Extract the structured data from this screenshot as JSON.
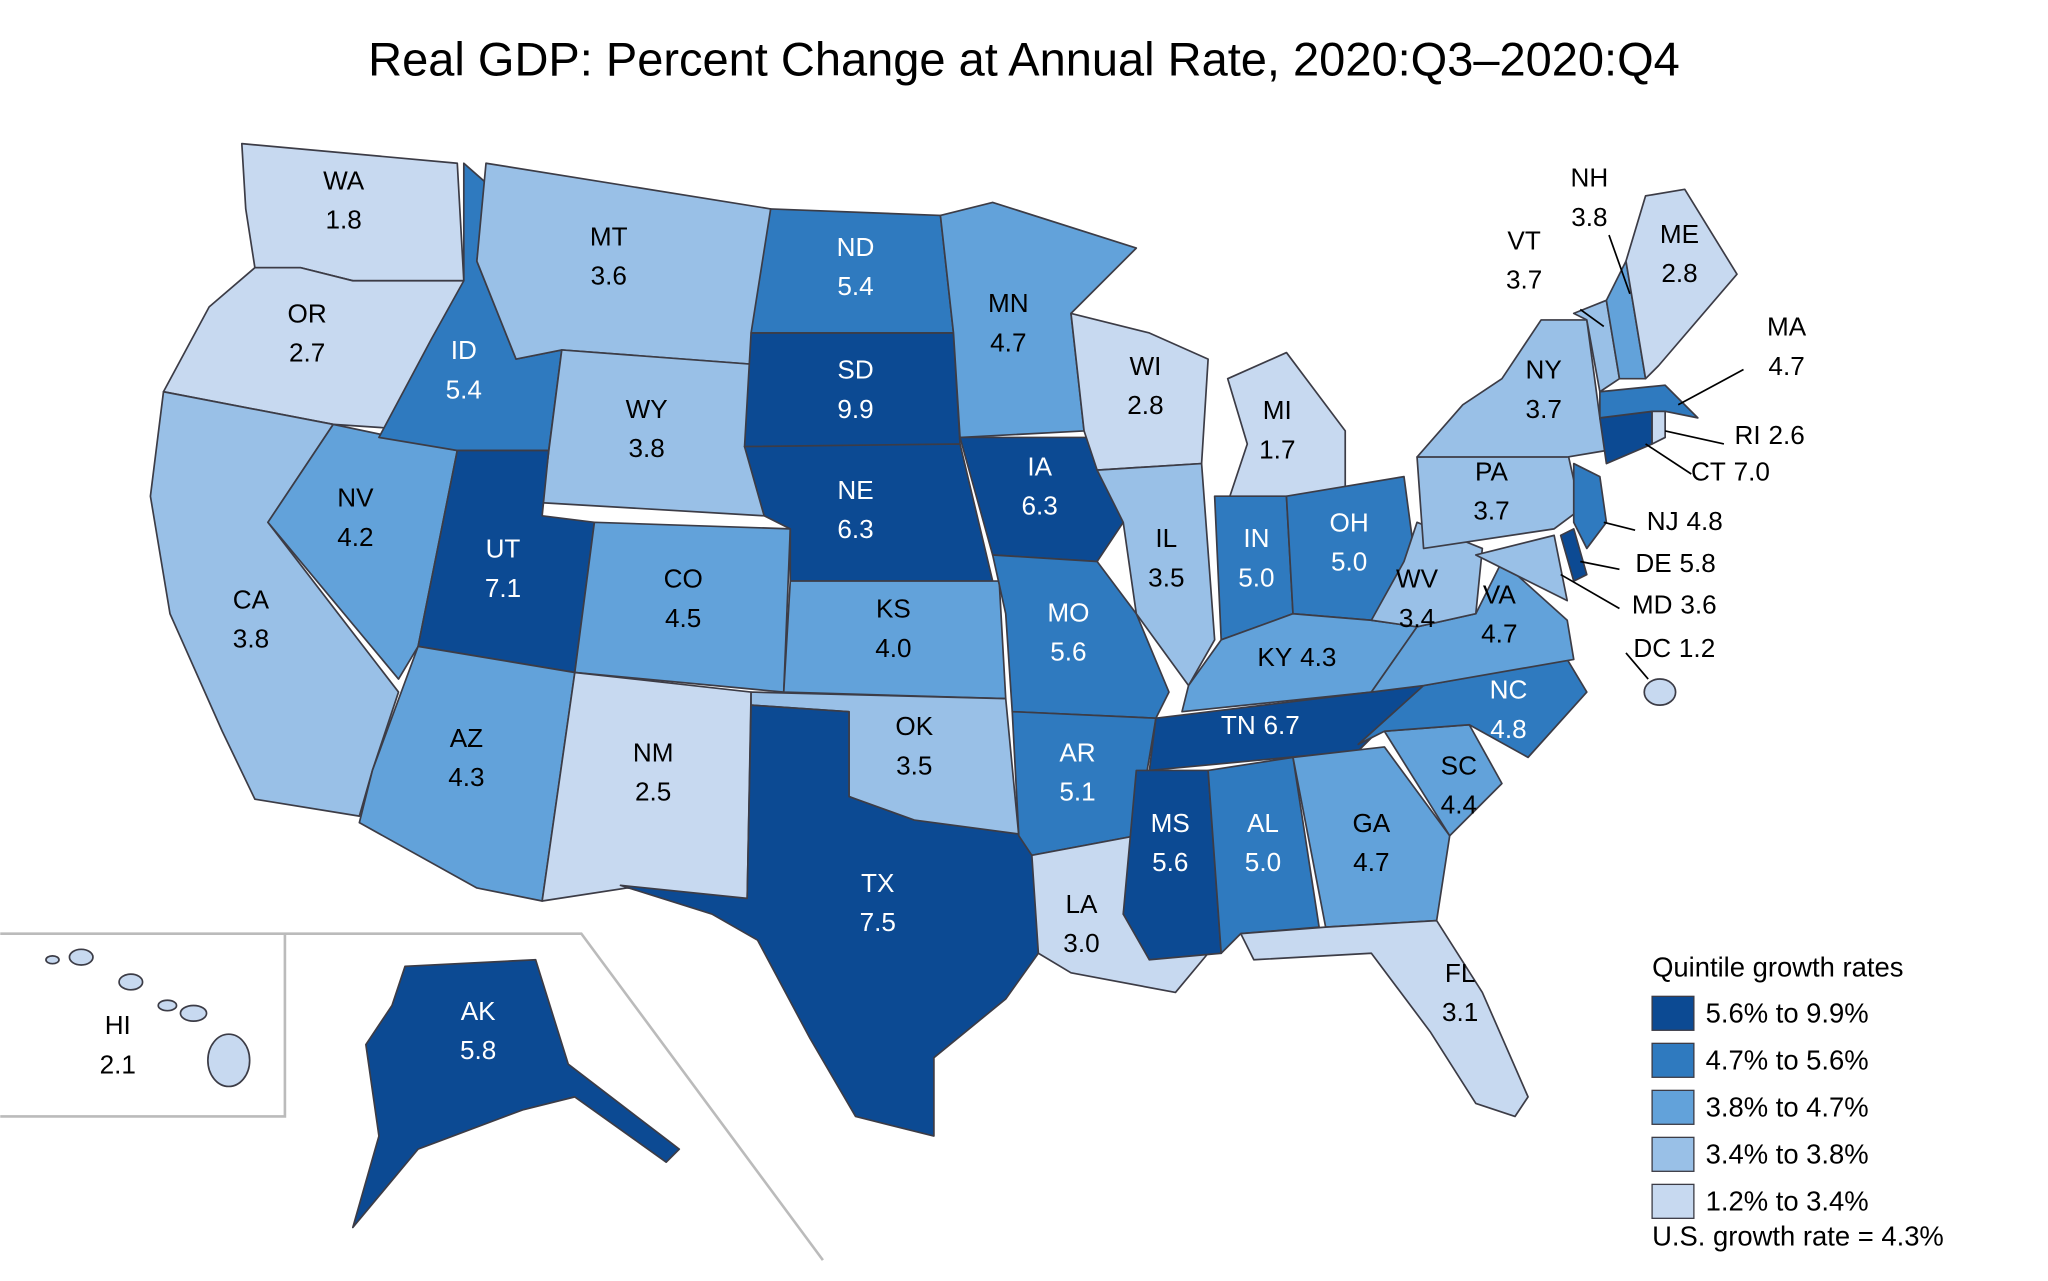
{
  "title": "Real GDP: Percent Change at Annual Rate, 2020:Q3–2020:Q4",
  "map": {
    "states": [
      {
        "abbr": "WA",
        "value": 1.8,
        "bin": 4
      },
      {
        "abbr": "OR",
        "value": 2.7,
        "bin": 4
      },
      {
        "abbr": "CA",
        "value": 3.8,
        "bin": 3
      },
      {
        "abbr": "NV",
        "value": 4.2,
        "bin": 2
      },
      {
        "abbr": "ID",
        "value": 5.4,
        "bin": 1
      },
      {
        "abbr": "MT",
        "value": 3.6,
        "bin": 3
      },
      {
        "abbr": "WY",
        "value": 3.8,
        "bin": 3
      },
      {
        "abbr": "UT",
        "value": 7.1,
        "bin": 0
      },
      {
        "abbr": "AZ",
        "value": 4.3,
        "bin": 2
      },
      {
        "abbr": "CO",
        "value": 4.5,
        "bin": 2
      },
      {
        "abbr": "NM",
        "value": 2.5,
        "bin": 4
      },
      {
        "abbr": "ND",
        "value": 5.4,
        "bin": 1
      },
      {
        "abbr": "SD",
        "value": 9.9,
        "bin": 0
      },
      {
        "abbr": "NE",
        "value": 6.3,
        "bin": 0
      },
      {
        "abbr": "KS",
        "value": 4,
        "label": "4.0",
        "bin": 2
      },
      {
        "abbr": "OK",
        "value": 3.5,
        "bin": 3
      },
      {
        "abbr": "TX",
        "value": 7.5,
        "bin": 0
      },
      {
        "abbr": "MN",
        "value": 4.7,
        "bin": 2
      },
      {
        "abbr": "IA",
        "value": 6.3,
        "bin": 0
      },
      {
        "abbr": "MO",
        "value": 5.6,
        "bin": 1
      },
      {
        "abbr": "AR",
        "value": 5.1,
        "bin": 1
      },
      {
        "abbr": "LA",
        "value": 3,
        "label": "3.0",
        "bin": 4
      },
      {
        "abbr": "WI",
        "value": 2.8,
        "bin": 4
      },
      {
        "abbr": "IL",
        "value": 3.5,
        "bin": 3
      },
      {
        "abbr": "MI",
        "value": 1.7,
        "bin": 4
      },
      {
        "abbr": "IN",
        "value": 5,
        "label": "5.0",
        "bin": 1
      },
      {
        "abbr": "OH",
        "value": 5,
        "label": "5.0",
        "bin": 1
      },
      {
        "abbr": "KY",
        "value": 4.3,
        "bin": 2
      },
      {
        "abbr": "TN",
        "value": 6.7,
        "bin": 0
      },
      {
        "abbr": "MS",
        "value": 5.6,
        "bin": 0
      },
      {
        "abbr": "AL",
        "value": 5,
        "label": "5.0",
        "bin": 1
      },
      {
        "abbr": "GA",
        "value": 4.7,
        "bin": 2
      },
      {
        "abbr": "FL",
        "value": 3.1,
        "bin": 4
      },
      {
        "abbr": "SC",
        "value": 4.4,
        "bin": 2
      },
      {
        "abbr": "NC",
        "value": 4.8,
        "bin": 1
      },
      {
        "abbr": "VA",
        "value": 4.7,
        "bin": 2
      },
      {
        "abbr": "WV",
        "value": 3.4,
        "bin": 3
      },
      {
        "abbr": "PA",
        "value": 3.7,
        "bin": 3
      },
      {
        "abbr": "NY",
        "value": 3.7,
        "bin": 3
      },
      {
        "abbr": "MD",
        "value": 3.6,
        "bin": 3
      },
      {
        "abbr": "DE",
        "value": 5.8,
        "bin": 0
      },
      {
        "abbr": "NJ",
        "value": 4.8,
        "bin": 1
      },
      {
        "abbr": "CT",
        "value": 7,
        "label": "7.0",
        "bin": 0
      },
      {
        "abbr": "RI",
        "value": 2.6,
        "bin": 4
      },
      {
        "abbr": "MA",
        "value": 4.7,
        "bin": 1
      },
      {
        "abbr": "VT",
        "value": 3.7,
        "bin": 3
      },
      {
        "abbr": "NH",
        "value": 3.8,
        "bin": 2
      },
      {
        "abbr": "ME",
        "value": 2.8,
        "bin": 4
      },
      {
        "abbr": "DC",
        "value": 1.2,
        "bin": 4
      },
      {
        "abbr": "AK",
        "value": 5.8,
        "bin": 0
      },
      {
        "abbr": "HI",
        "value": 2.1,
        "bin": 4
      }
    ],
    "legend": {
      "title": "Quintile growth rates",
      "bins": [
        {
          "label": "5.6% to 9.9%",
          "color": "#0c4a93"
        },
        {
          "label": "4.7% to 5.6%",
          "color": "#2f7abf"
        },
        {
          "label": "3.8% to 4.7%",
          "color": "#62a2da"
        },
        {
          "label": "3.4% to 3.8%",
          "color": "#99c0e7"
        },
        {
          "label": "1.2% to 3.4%",
          "color": "#c7d9f0"
        }
      ]
    },
    "note": "U.S. growth rate = 4.3%"
  }
}
